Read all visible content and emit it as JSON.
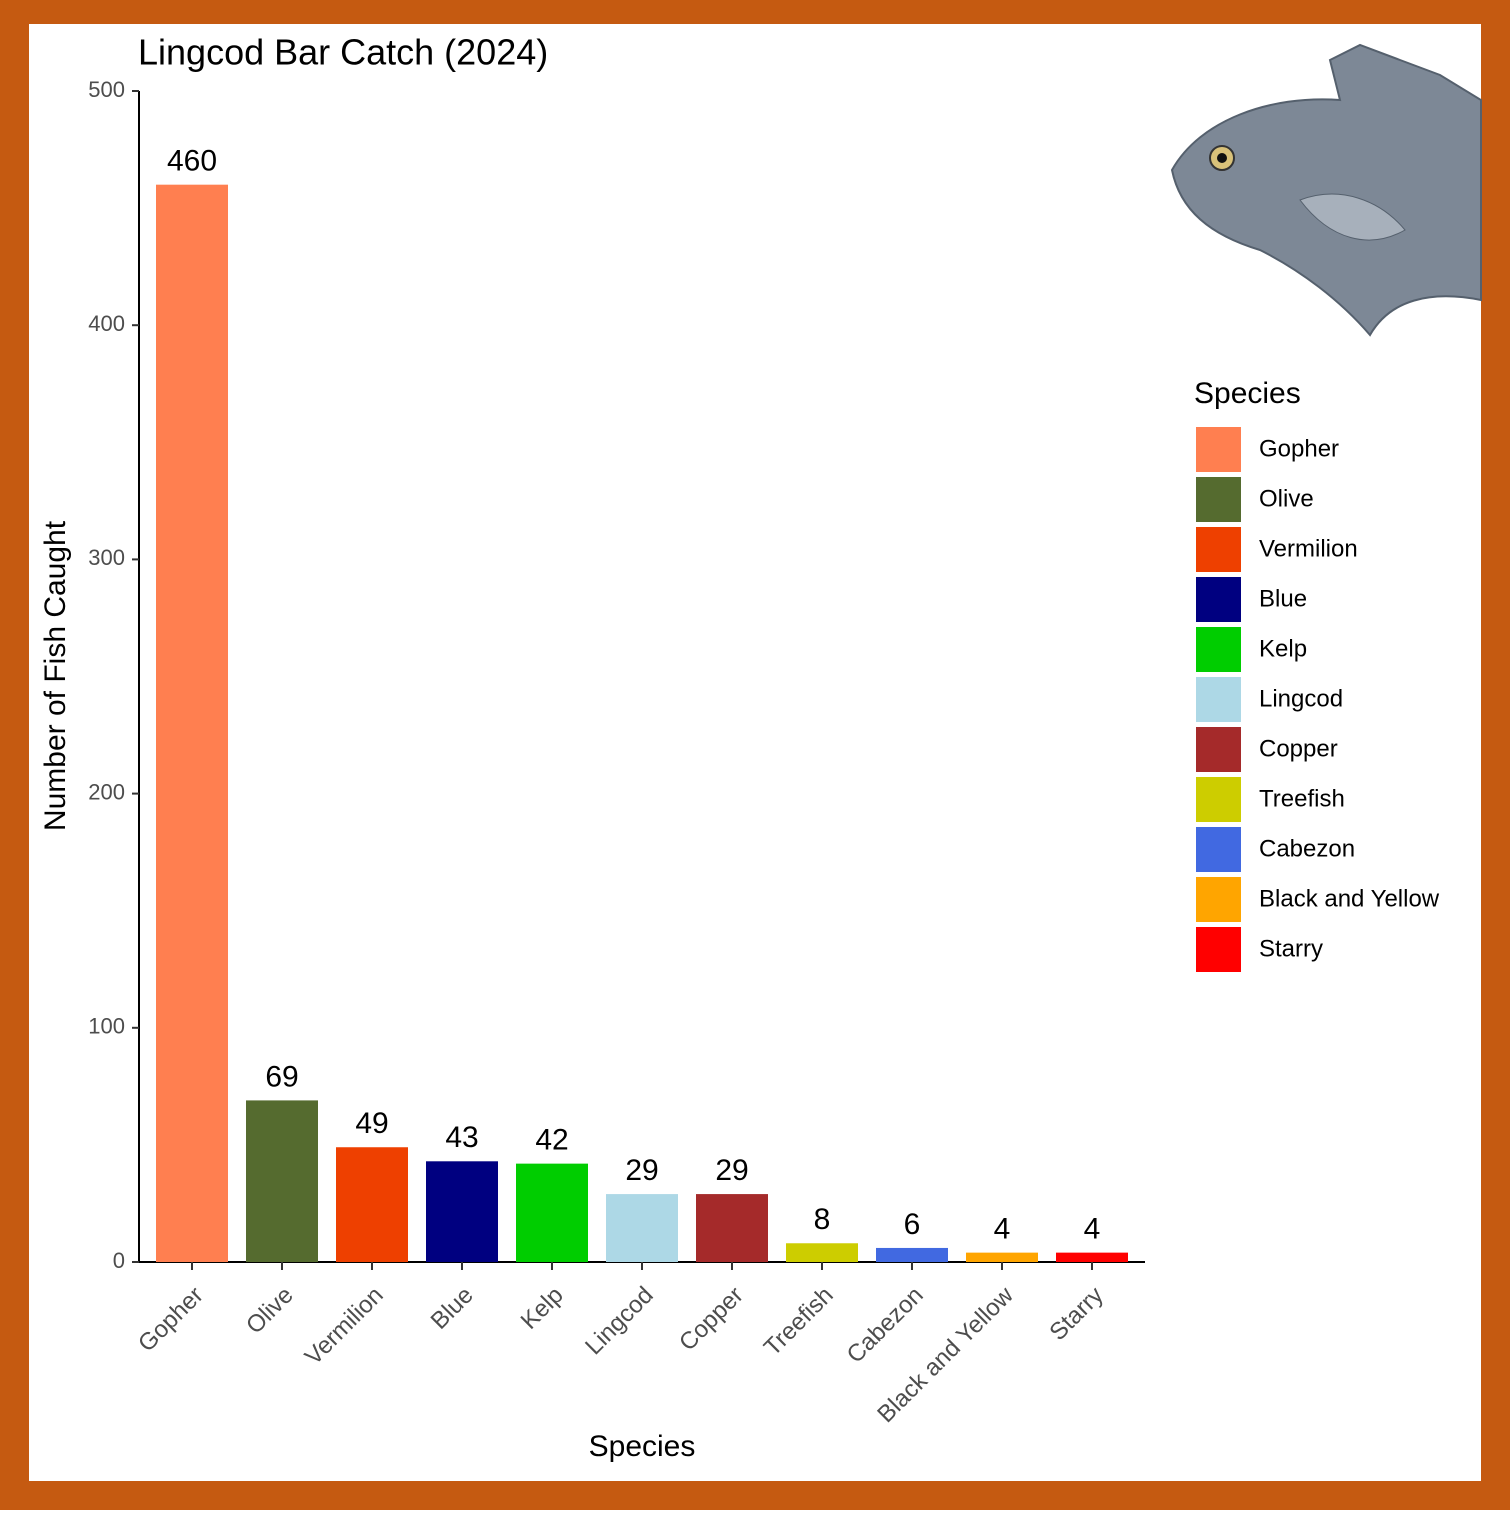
{
  "chart_data": {
    "type": "bar",
    "title": "Lingcod Bar Catch (2024)",
    "x_label": "Species",
    "y_label": "Number of Fish Caught",
    "legend_title": "Species",
    "categories": [
      "Gopher",
      "Olive",
      "Vermilion",
      "Blue",
      "Kelp",
      "Lingcod",
      "Copper",
      "Treefish",
      "Cabezon",
      "Black and Yellow",
      "Starry"
    ],
    "values": [
      460,
      69,
      49,
      43,
      42,
      29,
      29,
      8,
      6,
      4,
      4
    ],
    "colors": [
      "#ff7f50",
      "#556b2f",
      "#ee4000",
      "#000080",
      "#00cd00",
      "#add8e6",
      "#a52a2a",
      "#cdcd00",
      "#4169e1",
      "#ffa500",
      "#ff0000"
    ],
    "ylim": [
      0,
      500
    ],
    "yticks": [
      0,
      100,
      200,
      300,
      400,
      500
    ],
    "grid": false,
    "legend_position": "right"
  }
}
